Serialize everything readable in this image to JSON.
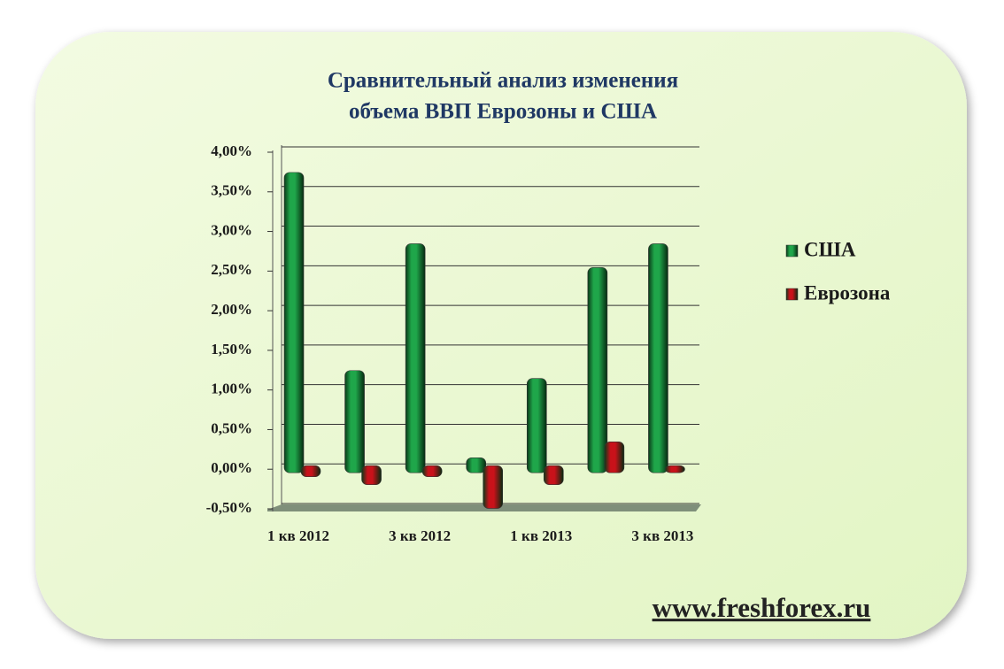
{
  "chart_data": {
    "type": "bar",
    "title": [
      "Сравнительный анализ изменения",
      "объема ВВП  Еврозоны и США"
    ],
    "categories": [
      "1 кв 2012",
      null,
      "3 кв 2012",
      null,
      "1 кв 2013",
      null,
      "3 кв 2013"
    ],
    "series": [
      {
        "name": "США",
        "color": "#1fa64a",
        "values": [
          3.7,
          1.2,
          2.8,
          0.1,
          1.1,
          2.5,
          2.8
        ]
      },
      {
        "name": "Еврозона",
        "color": "#c8121a",
        "values": [
          -0.05,
          -0.15,
          -0.05,
          -0.45,
          -0.15,
          0.3,
          0
        ]
      }
    ],
    "ylim": [
      -0.5,
      4
    ],
    "yticks": [
      {
        "value": -0.5,
        "label": "-0,50%"
      },
      {
        "value": 0,
        "label": "0,00%"
      },
      {
        "value": 0.5,
        "label": "0,50%"
      },
      {
        "value": 1,
        "label": "1,00%"
      },
      {
        "value": 1.5,
        "label": "1,50%"
      },
      {
        "value": 2,
        "label": "2,00%"
      },
      {
        "value": 2.5,
        "label": "2,50%"
      },
      {
        "value": 3,
        "label": "3,00%"
      },
      {
        "value": 3.5,
        "label": "3,50%"
      },
      {
        "value": 4,
        "label": "4,00%"
      }
    ],
    "grid": true,
    "legend": "right"
  },
  "footer": {
    "link": "www.freshforex.ru"
  }
}
